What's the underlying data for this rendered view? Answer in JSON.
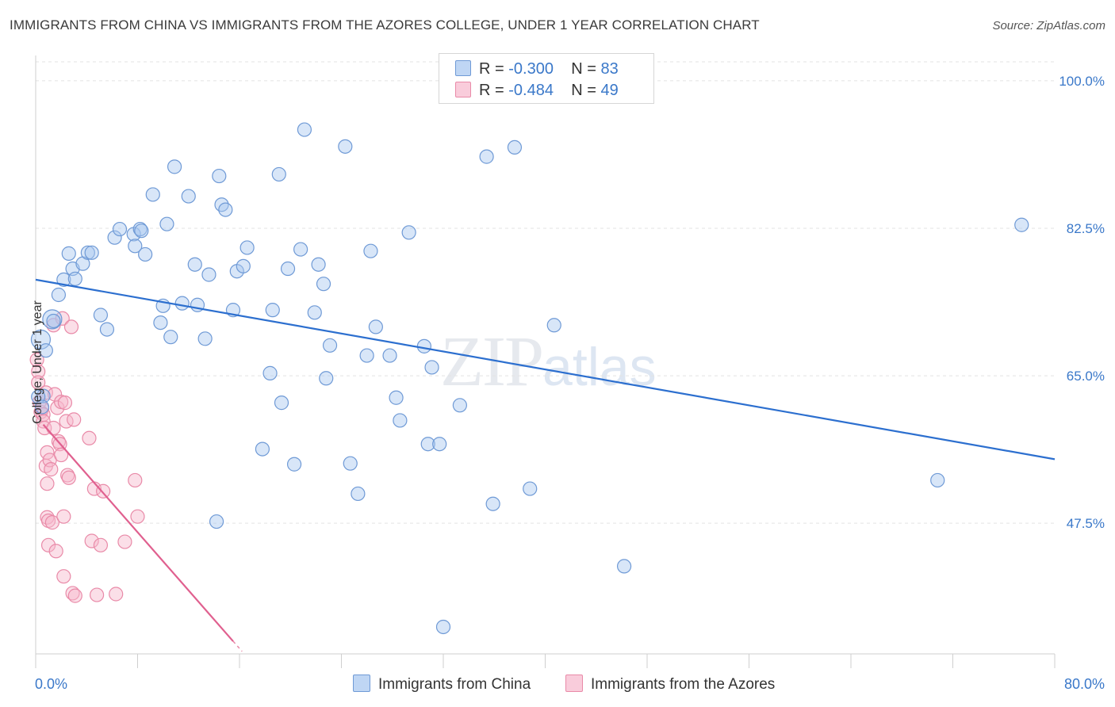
{
  "header": {
    "title": "IMMIGRANTS FROM CHINA VS IMMIGRANTS FROM THE AZORES COLLEGE, UNDER 1 YEAR CORRELATION CHART",
    "source": "Source: ZipAtlas.com"
  },
  "watermark": {
    "zip": "ZIP",
    "atlas": "atlas"
  },
  "legend": {
    "rows": [
      {
        "r_label": "R = ",
        "r_value": "-0.300",
        "n_label": "N = ",
        "n_value": "83"
      },
      {
        "r_label": "R = ",
        "r_value": "-0.484",
        "n_label": "N = ",
        "n_value": "49"
      }
    ]
  },
  "colors": {
    "china_fill": "#a9c8f0",
    "china_stroke": "#6f9ad6",
    "china_line": "#2c6fcf",
    "azores_fill": "#f6b9cd",
    "azores_stroke": "#e98aa8",
    "azores_line": "#e0608f",
    "tick_text": "#3a78c9",
    "grid": "#e3e3e3"
  },
  "chart_data": {
    "type": "scatter",
    "title": "IMMIGRANTS FROM CHINA VS IMMIGRANTS FROM THE AZORES COLLEGE, UNDER 1 YEAR CORRELATION CHART",
    "xlabel": "",
    "ylabel": "College, Under 1 year",
    "xlim": [
      0,
      80
    ],
    "ylim": [
      32,
      103
    ],
    "x_tick_labels": [
      "0.0%",
      "80.0%"
    ],
    "y_ticks": [
      47.5,
      65.0,
      82.5,
      100.0
    ],
    "y_tick_labels": [
      "47.5%",
      "65.0%",
      "82.5%",
      "100.0%"
    ],
    "grid": true,
    "legend_position": "bottom",
    "series": [
      {
        "name": "Immigrants from China",
        "R": -0.3,
        "N": 83,
        "trendline": {
          "x": [
            0,
            80
          ],
          "y": [
            76.4,
            55.1
          ]
        },
        "points": [
          [
            0.4,
            69.3
          ],
          [
            0.6,
            62.6
          ],
          [
            1.3,
            71.7
          ],
          [
            1.4,
            71.5
          ],
          [
            1.8,
            74.6
          ],
          [
            2.2,
            76.4
          ],
          [
            2.6,
            79.5
          ],
          [
            2.9,
            77.7
          ],
          [
            3.1,
            76.5
          ],
          [
            3.7,
            78.3
          ],
          [
            4.1,
            79.6
          ],
          [
            4.4,
            79.6
          ],
          [
            5.1,
            72.2
          ],
          [
            5.6,
            70.5
          ],
          [
            6.2,
            81.4
          ],
          [
            6.6,
            82.4
          ],
          [
            7.7,
            81.8
          ],
          [
            7.8,
            80.4
          ],
          [
            8.2,
            82.4
          ],
          [
            8.3,
            82.2
          ],
          [
            8.6,
            79.4
          ],
          [
            9.2,
            86.5
          ],
          [
            9.8,
            71.3
          ],
          [
            10.0,
            73.3
          ],
          [
            10.3,
            83.0
          ],
          [
            10.6,
            69.6
          ],
          [
            10.9,
            89.8
          ],
          [
            11.5,
            73.6
          ],
          [
            12.0,
            86.3
          ],
          [
            12.5,
            78.2
          ],
          [
            12.7,
            73.4
          ],
          [
            13.3,
            69.4
          ],
          [
            13.6,
            77.0
          ],
          [
            14.2,
            47.7
          ],
          [
            14.4,
            88.7
          ],
          [
            14.6,
            85.3
          ],
          [
            14.9,
            84.7
          ],
          [
            15.5,
            72.8
          ],
          [
            15.8,
            77.4
          ],
          [
            16.3,
            78.0
          ],
          [
            16.6,
            80.2
          ],
          [
            17.8,
            56.3
          ],
          [
            18.4,
            65.3
          ],
          [
            18.6,
            72.8
          ],
          [
            19.1,
            88.9
          ],
          [
            19.3,
            61.8
          ],
          [
            19.8,
            77.7
          ],
          [
            20.3,
            54.5
          ],
          [
            20.8,
            80.0
          ],
          [
            21.1,
            94.2
          ],
          [
            21.9,
            72.5
          ],
          [
            22.2,
            78.2
          ],
          [
            22.6,
            75.9
          ],
          [
            22.8,
            64.7
          ],
          [
            23.1,
            68.6
          ],
          [
            24.3,
            92.2
          ],
          [
            24.7,
            54.6
          ],
          [
            25.3,
            51.0
          ],
          [
            26.0,
            67.4
          ],
          [
            26.3,
            79.8
          ],
          [
            26.7,
            70.8
          ],
          [
            27.8,
            67.4
          ],
          [
            28.3,
            62.4
          ],
          [
            28.6,
            59.7
          ],
          [
            29.3,
            82.0
          ],
          [
            30.5,
            68.5
          ],
          [
            30.8,
            56.9
          ],
          [
            31.1,
            66.0
          ],
          [
            31.7,
            56.9
          ],
          [
            32.0,
            35.2
          ],
          [
            33.3,
            61.5
          ],
          [
            35.4,
            91.0
          ],
          [
            35.9,
            49.8
          ],
          [
            37.6,
            92.1
          ],
          [
            38.8,
            51.6
          ],
          [
            40.7,
            71.0
          ],
          [
            46.2,
            42.4
          ],
          [
            70.8,
            52.6
          ],
          [
            77.4,
            82.9
          ],
          [
            0.2,
            62.5
          ],
          [
            0.5,
            61.3
          ],
          [
            0.8,
            68.0
          ],
          [
            34.7,
            99.1
          ]
        ]
      },
      {
        "name": "Immigrants from the Azores",
        "R": -0.484,
        "N": 49,
        "trendline": {
          "x": [
            0.6,
            15.5
          ],
          "y": [
            59.2,
            33.5
          ]
        },
        "points": [
          [
            0.1,
            66.9
          ],
          [
            0.2,
            65.5
          ],
          [
            0.2,
            64.2
          ],
          [
            0.3,
            61.9
          ],
          [
            0.4,
            60.7
          ],
          [
            0.5,
            61.1
          ],
          [
            0.6,
            60.4
          ],
          [
            0.6,
            59.6
          ],
          [
            0.7,
            58.8
          ],
          [
            0.8,
            63.0
          ],
          [
            0.9,
            55.9
          ],
          [
            0.8,
            54.3
          ],
          [
            0.9,
            52.2
          ],
          [
            0.9,
            48.2
          ],
          [
            1.0,
            44.9
          ],
          [
            1.0,
            47.8
          ],
          [
            1.1,
            55.0
          ],
          [
            1.2,
            53.9
          ],
          [
            1.3,
            47.6
          ],
          [
            1.4,
            58.8
          ],
          [
            1.4,
            71.0
          ],
          [
            1.5,
            62.8
          ],
          [
            1.6,
            44.2
          ],
          [
            1.7,
            61.2
          ],
          [
            1.8,
            57.2
          ],
          [
            1.9,
            56.9
          ],
          [
            2.0,
            61.9
          ],
          [
            2.0,
            55.6
          ],
          [
            2.1,
            71.8
          ],
          [
            2.2,
            48.3
          ],
          [
            2.3,
            61.8
          ],
          [
            2.2,
            41.2
          ],
          [
            2.4,
            59.6
          ],
          [
            2.5,
            53.2
          ],
          [
            2.6,
            52.9
          ],
          [
            2.8,
            70.8
          ],
          [
            2.9,
            39.2
          ],
          [
            3.0,
            59.8
          ],
          [
            3.1,
            38.9
          ],
          [
            4.2,
            57.6
          ],
          [
            4.4,
            45.4
          ],
          [
            4.6,
            51.6
          ],
          [
            4.8,
            39.0
          ],
          [
            5.1,
            44.9
          ],
          [
            5.3,
            51.3
          ],
          [
            6.3,
            39.1
          ],
          [
            7.0,
            45.3
          ],
          [
            7.8,
            52.6
          ],
          [
            8.0,
            48.3
          ]
        ]
      }
    ]
  },
  "bottom_legend": {
    "china": "Immigrants from China",
    "azores": "Immigrants from the Azores"
  },
  "ylabel": "College, Under 1 year",
  "x_axis": {
    "left": "0.0%",
    "right": "80.0%"
  }
}
